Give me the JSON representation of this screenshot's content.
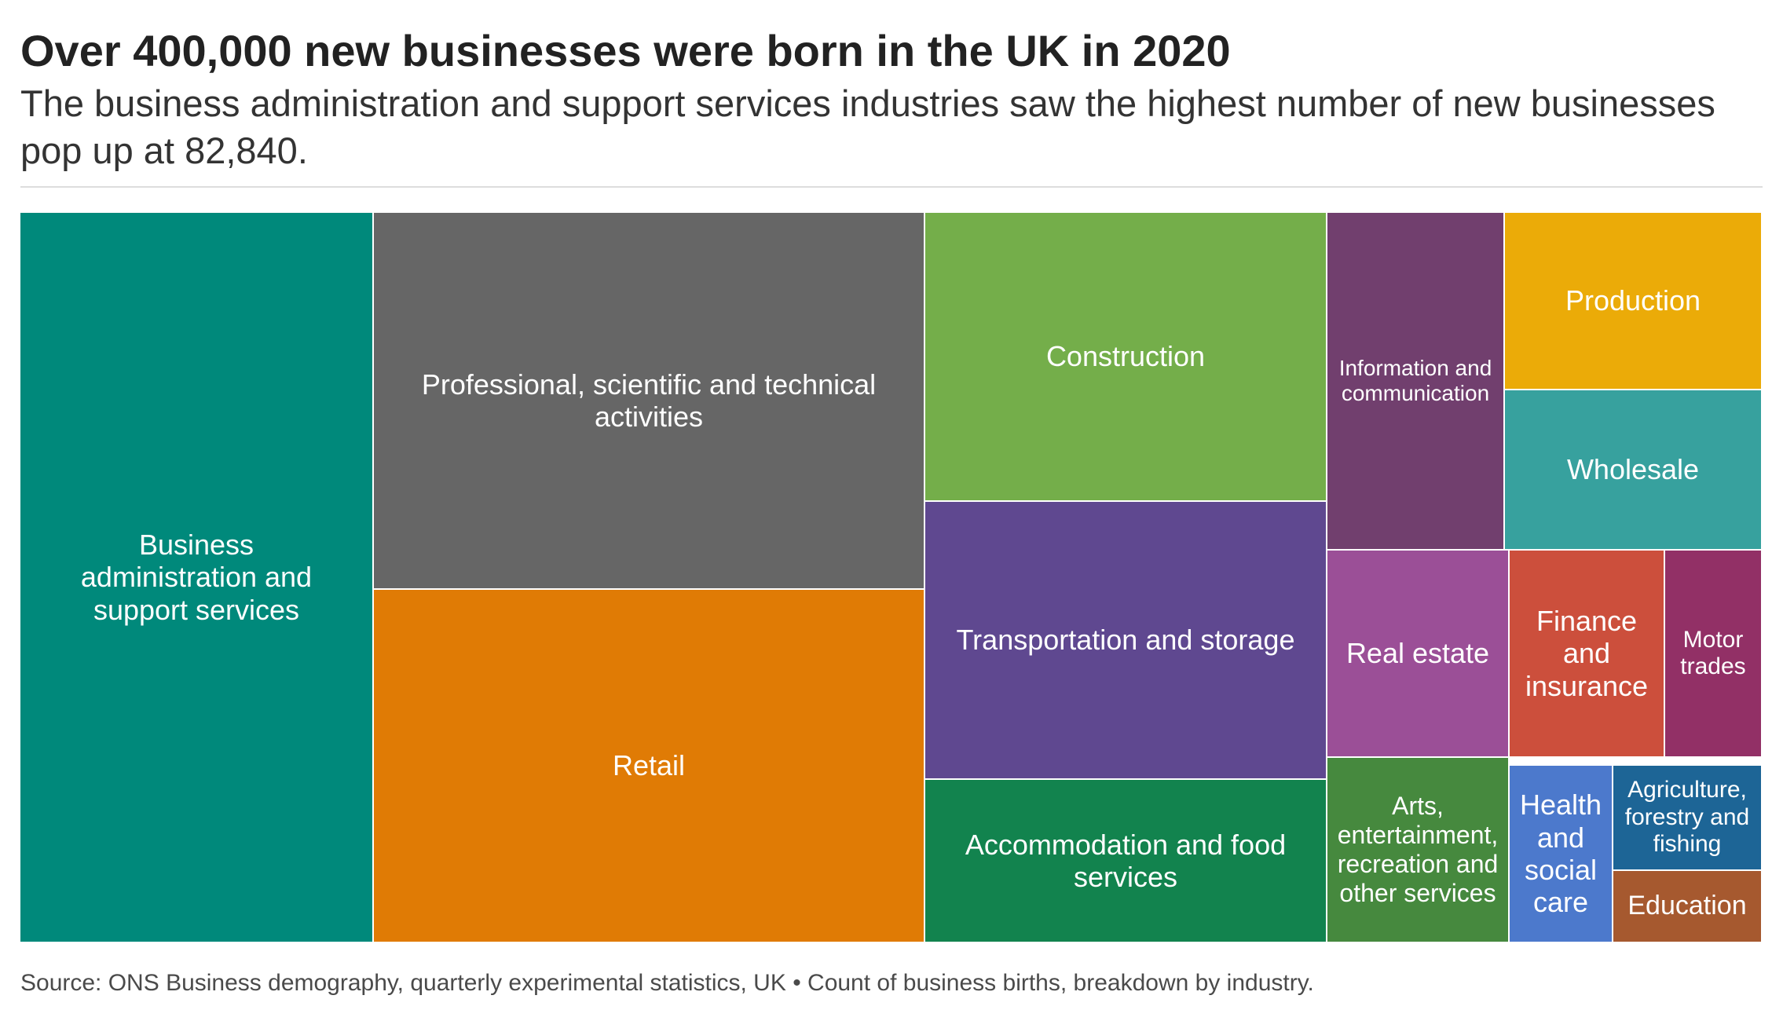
{
  "header": {
    "title": "Over 400,000 new businesses were born in the UK in 2020",
    "subtitle": "The business administration and support services industries saw the highest number of new businesses pop up at 82,840."
  },
  "footer": {
    "source": "Source: ONS Business demography, quarterly experimental statistics, UK • Count of business births, breakdown by industry."
  },
  "chart_data": {
    "type": "treemap",
    "title": "Over 400,000 new businesses were born in the UK in 2020",
    "subtitle": "The business administration and support services industries saw the highest number of new businesses pop up at 82,840.",
    "total_approx": 406000,
    "categories": [
      {
        "name": "Business administration and support services",
        "value": 82840,
        "color": "#00897b"
      },
      {
        "name": "Professional, scientific and technical activities",
        "value": 67000,
        "color": "#666666"
      },
      {
        "name": "Retail",
        "value": 62000,
        "color": "#e07b05"
      },
      {
        "name": "Construction",
        "value": 36000,
        "color": "#74ae4a"
      },
      {
        "name": "Transportation and storage",
        "value": 35000,
        "color": "#5f4890"
      },
      {
        "name": "Accommodation and food services",
        "value": 20000,
        "color": "#12834e"
      },
      {
        "name": "Information and communication",
        "value": 18500,
        "color": "#713f6e"
      },
      {
        "name": "Production",
        "value": 9500,
        "color": "#ebab08"
      },
      {
        "name": "Wholesale",
        "value": 8500,
        "color": "#37a19e"
      },
      {
        "name": "Real estate",
        "value": 10500,
        "color": "#9b4f97"
      },
      {
        "name": "Finance and insurance",
        "value": 8500,
        "color": "#cc4f3c"
      },
      {
        "name": "Motor trades",
        "value": 5600,
        "color": "#923066"
      },
      {
        "name": "Arts, entertainment, recreation and other services",
        "value": 9500,
        "color": "#46893e"
      },
      {
        "name": "Health and social care",
        "value": 6000,
        "color": "#4c79cc"
      },
      {
        "name": "Agriculture, forestry and fishing",
        "value": 3300,
        "color": "#1d6596"
      },
      {
        "name": "Education",
        "value": 2700,
        "color": "#a6592f"
      }
    ]
  }
}
